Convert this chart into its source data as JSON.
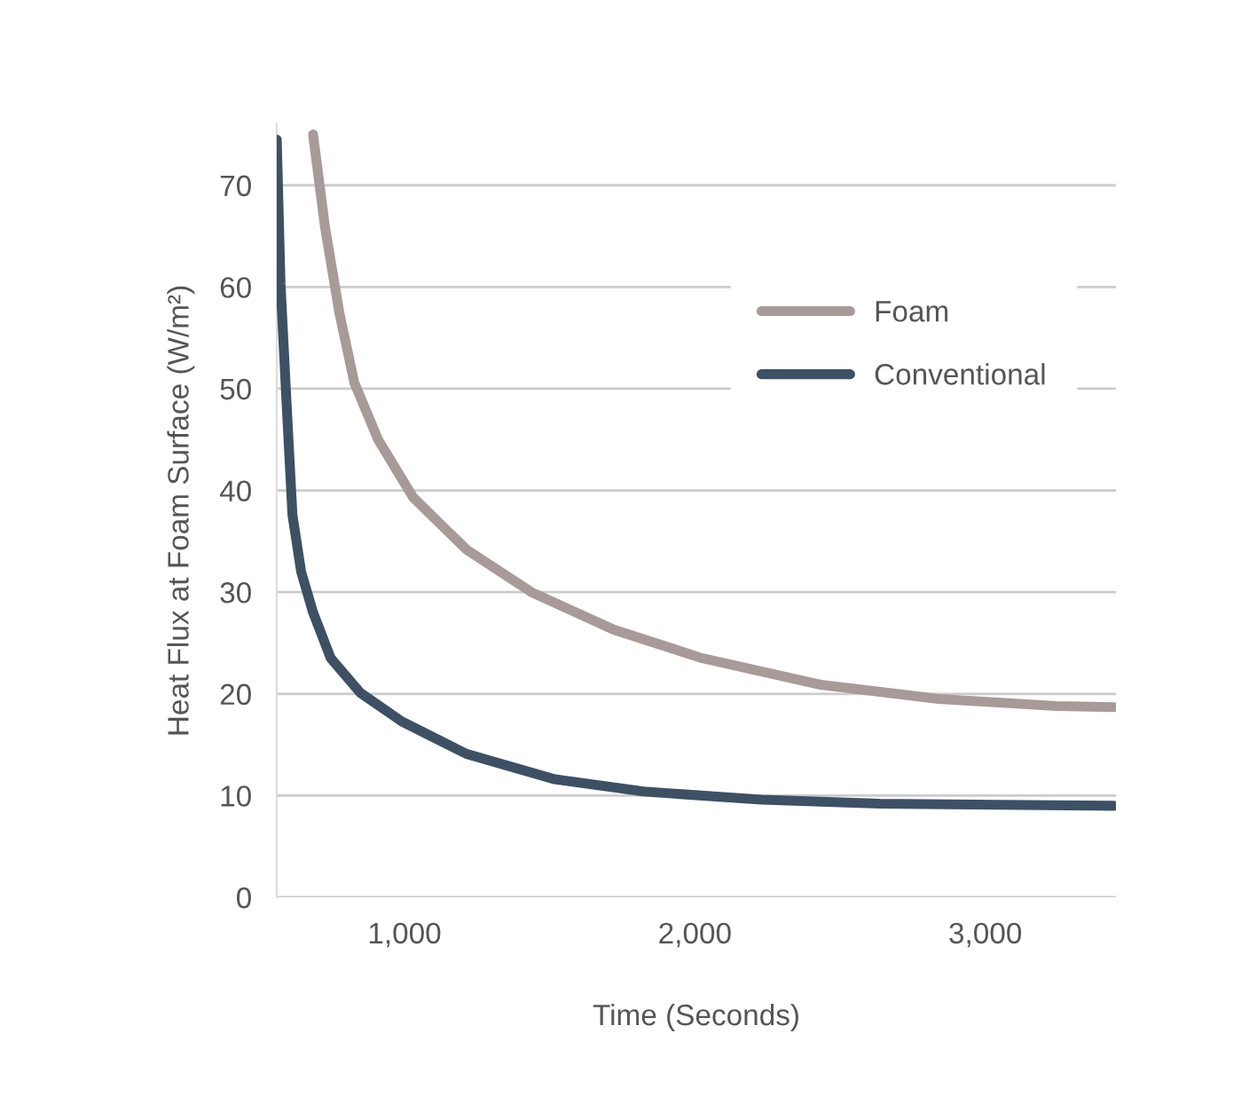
{
  "chart_data": {
    "type": "line",
    "xlabel": "Time (Seconds)",
    "ylabel": "Heat Flux at Foam Surface (W/m²)",
    "xlim": [
      560,
      3450
    ],
    "xticks": [
      {
        "value": 1000,
        "label": "1,000"
      },
      {
        "value": 2000,
        "label": "2,000"
      },
      {
        "value": 3000,
        "label": "3,000"
      }
    ],
    "ylim": [
      0,
      76
    ],
    "yticks": [
      0,
      10,
      20,
      30,
      40,
      50,
      60,
      70
    ],
    "grid": "y",
    "legend": "top right",
    "marker": "none",
    "line_style": "solid",
    "series": [
      {
        "name": "Foam",
        "color": "#a89a98",
        "x": [
          685,
          726,
          776,
          827,
          909,
          1030,
          1213,
          1437,
          1722,
          2026,
          2433,
          2839,
          3246,
          3443
        ],
        "values": [
          75,
          65.9,
          57.4,
          50.6,
          45,
          39.3,
          34.2,
          30,
          26.3,
          23.5,
          20.9,
          19.5,
          18.8,
          18.7
        ]
      },
      {
        "name": "Conventional",
        "color": "#3d5064",
        "x": [
          560,
          573,
          593,
          614,
          644,
          685,
          746,
          848,
          990,
          1213,
          1518,
          1823,
          2230,
          2636,
          3043,
          3443
        ],
        "values": [
          74.5,
          60.3,
          49,
          37.6,
          32,
          28,
          23.5,
          20.1,
          17.3,
          14.1,
          11.6,
          10.4,
          9.6,
          9.2,
          9.1,
          9.0
        ]
      }
    ]
  }
}
